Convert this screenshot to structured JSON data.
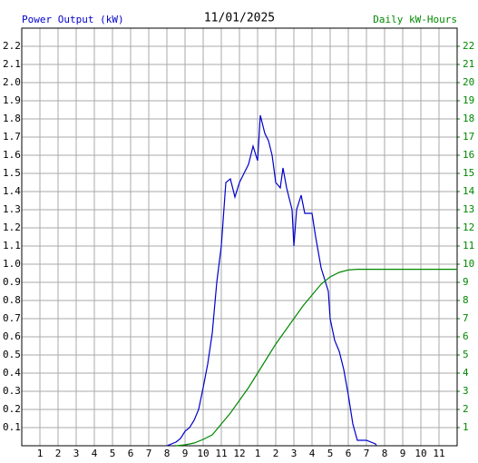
{
  "chart_data": {
    "type": "line",
    "title": "11/01/2025",
    "y_label": "Power Output (kW)",
    "y2_label": "Daily kW-Hours",
    "grid": true,
    "xlim": [
      0,
      24
    ],
    "xticks": [
      1,
      2,
      3,
      4,
      5,
      6,
      7,
      8,
      9,
      10,
      11,
      12,
      {
        "value": 13,
        "label": "1"
      },
      {
        "value": 14,
        "label": "2"
      },
      {
        "value": 15,
        "label": "3"
      },
      {
        "value": 16,
        "label": "4"
      },
      {
        "value": 17,
        "label": "5"
      },
      {
        "value": 18,
        "label": "6"
      },
      {
        "value": 19,
        "label": "7"
      },
      {
        "value": 20,
        "label": "8"
      },
      {
        "value": 21,
        "label": "9"
      },
      {
        "value": 22,
        "label": "10"
      },
      {
        "value": 23,
        "label": "11"
      }
    ],
    "ylim": [
      0,
      2.3
    ],
    "yticks": [
      0.1,
      0.2,
      0.3,
      0.4,
      0.5,
      0.6,
      0.7,
      0.8,
      0.9,
      {
        "value": 1,
        "label": "1.0"
      },
      1.1,
      1.2,
      1.3,
      1.4,
      1.5,
      1.6,
      1.7,
      1.8,
      1.9,
      {
        "value": 2,
        "label": "2.0"
      },
      2.1,
      2.2
    ],
    "y2lim": [
      0,
      23
    ],
    "y2ticks": [
      1,
      2,
      3,
      4,
      5,
      6,
      7,
      8,
      9,
      10,
      11,
      12,
      13,
      14,
      15,
      16,
      17,
      18,
      19,
      20,
      21,
      22
    ],
    "series": [
      {
        "name": "Power Output (kW)",
        "color": "#0000cc",
        "x": [
          8.0,
          8.5,
          8.75,
          9.0,
          9.25,
          9.5,
          9.75,
          10.0,
          10.25,
          10.5,
          10.75,
          11.0,
          11.25,
          11.5,
          11.75,
          12.0,
          12.25,
          12.5,
          12.75,
          13.0,
          13.15,
          13.4,
          13.6,
          13.8,
          14.0,
          14.25,
          14.4,
          14.6,
          14.9,
          15.0,
          15.15,
          15.4,
          15.6,
          16.0,
          16.2,
          16.5,
          16.9,
          17.0,
          17.25,
          17.5,
          17.75,
          18.0,
          18.25,
          18.5,
          19.0,
          19.5,
          19.55
        ],
        "values": [
          0,
          0.02,
          0.04,
          0.08,
          0.1,
          0.14,
          0.2,
          0.32,
          0.45,
          0.62,
          0.9,
          1.1,
          1.45,
          1.47,
          1.37,
          1.45,
          1.5,
          1.55,
          1.65,
          1.57,
          1.82,
          1.72,
          1.68,
          1.6,
          1.45,
          1.42,
          1.53,
          1.42,
          1.3,
          1.1,
          1.3,
          1.38,
          1.28,
          1.28,
          1.15,
          0.98,
          0.85,
          0.7,
          0.58,
          0.52,
          0.42,
          0.28,
          0.12,
          0.03,
          0.03,
          0.01,
          0
        ]
      },
      {
        "name": "Daily kW-Hours",
        "color": "#008800",
        "axis": "y2",
        "x": [
          8.5,
          9.0,
          9.5,
          10.0,
          10.5,
          11.0,
          11.5,
          12.0,
          12.5,
          13.0,
          13.5,
          14.0,
          14.5,
          15.0,
          15.5,
          16.0,
          16.5,
          17.0,
          17.5,
          18.0,
          18.5,
          24.0
        ],
        "values": [
          0,
          0.05,
          0.15,
          0.35,
          0.6,
          1.2,
          1.8,
          2.5,
          3.2,
          4.0,
          4.8,
          5.6,
          6.3,
          7.0,
          7.7,
          8.3,
          8.9,
          9.3,
          9.55,
          9.68,
          9.72,
          9.72
        ]
      }
    ]
  }
}
